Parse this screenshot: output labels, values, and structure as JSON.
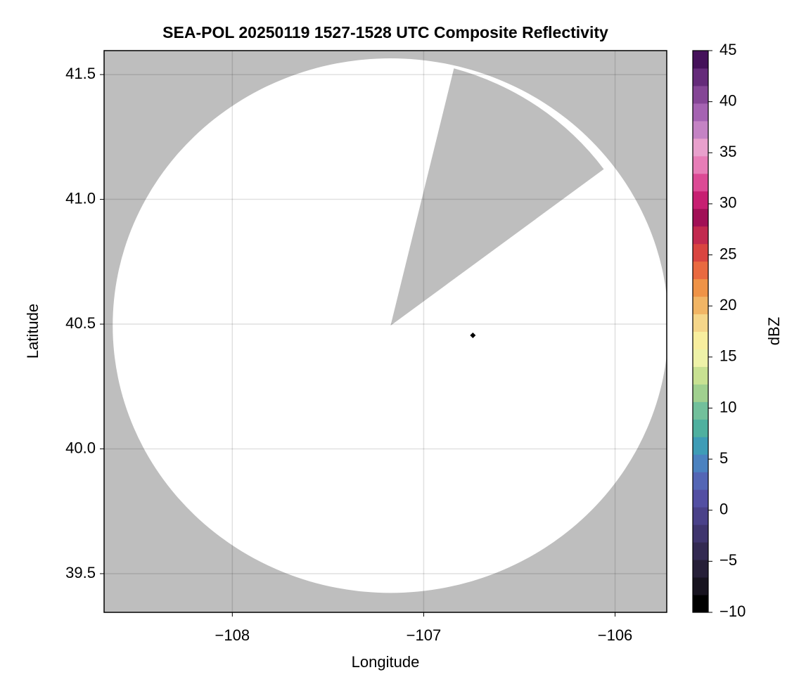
{
  "chart_data": {
    "type": "radar-map",
    "title": "SEA-POL 20250119 1527-1528 UTC Composite Reflectivity",
    "x_label": "Longitude",
    "y_label": "Latitude",
    "xlim": [
      -108.67,
      -105.73
    ],
    "ylim": [
      39.345,
      41.596
    ],
    "xticks": [
      {
        "value": -108,
        "label": "−108"
      },
      {
        "value": -107,
        "label": "−107"
      },
      {
        "value": -106,
        "label": "−106"
      }
    ],
    "yticks": [
      39.5,
      {
        "value": 40.0,
        "label": "40.0"
      },
      40.5,
      {
        "value": 41.0,
        "label": "41.0"
      },
      41.5
    ],
    "grid": true,
    "background_color": "#bebebe",
    "coverage": {
      "center": [
        -107.173,
        40.494
      ],
      "radius_lon": 1.452,
      "radius_lat": 1.071,
      "color": "#ffffff",
      "blocked_sector_edges": [
        [
          -106.842,
          41.525
        ],
        [
          -106.059,
          41.121
        ]
      ]
    },
    "marker": {
      "lon": -106.743,
      "lat": 40.455,
      "color": "#000000"
    },
    "colorbar": {
      "label": "dBZ",
      "lim": [
        -10,
        45
      ],
      "ticks": [
        {
          "value": -10,
          "label": "−10"
        },
        {
          "value": -5,
          "label": "−5"
        },
        0,
        5,
        10,
        15,
        20,
        25,
        30,
        35,
        40,
        45
      ],
      "colors": [
        "#000000",
        "#17131f",
        "#261f38",
        "#332a52",
        "#3f356e",
        "#4a4189",
        "#534fa3",
        "#5466b5",
        "#4b82c0",
        "#3e9cb6",
        "#4fb09f",
        "#72c09b",
        "#a0d08f",
        "#c8e192",
        "#eef2a8",
        "#f8ee9e",
        "#f5d68a",
        "#f1b565",
        "#ef9347",
        "#e96a40",
        "#d94540",
        "#c22a4f",
        "#a11056",
        "#c71f72",
        "#dc4a95",
        "#e77db7",
        "#e8a0cc",
        "#c483c4",
        "#a563b2",
        "#854696",
        "#652b7a",
        "#45115a"
      ]
    }
  }
}
